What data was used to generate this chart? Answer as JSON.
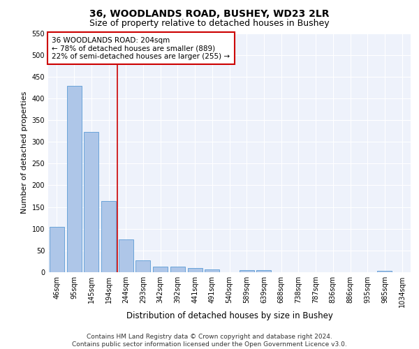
{
  "title1": "36, WOODLANDS ROAD, BUSHEY, WD23 2LR",
  "title2": "Size of property relative to detached houses in Bushey",
  "xlabel": "Distribution of detached houses by size in Bushey",
  "ylabel": "Number of detached properties",
  "categories": [
    "46sqm",
    "95sqm",
    "145sqm",
    "194sqm",
    "244sqm",
    "293sqm",
    "342sqm",
    "392sqm",
    "441sqm",
    "491sqm",
    "540sqm",
    "589sqm",
    "639sqm",
    "688sqm",
    "738sqm",
    "787sqm",
    "836sqm",
    "886sqm",
    "935sqm",
    "985sqm",
    "1034sqm"
  ],
  "values": [
    105,
    428,
    322,
    163,
    76,
    27,
    13,
    13,
    10,
    6,
    0,
    5,
    5,
    0,
    0,
    0,
    0,
    0,
    0,
    4,
    0
  ],
  "bar_color": "#aec6e8",
  "bar_edge_color": "#5b9bd5",
  "vline_x": 3.5,
  "vline_color": "#cc0000",
  "annotation_text": "36 WOODLANDS ROAD: 204sqm\n← 78% of detached houses are smaller (889)\n22% of semi-detached houses are larger (255) →",
  "annotation_box_color": "#ffffff",
  "annotation_box_edge": "#cc0000",
  "ylim": [
    0,
    550
  ],
  "yticks": [
    0,
    50,
    100,
    150,
    200,
    250,
    300,
    350,
    400,
    450,
    500,
    550
  ],
  "background_color": "#eef2fb",
  "footer_text": "Contains HM Land Registry data © Crown copyright and database right 2024.\nContains public sector information licensed under the Open Government Licence v3.0.",
  "title1_fontsize": 10,
  "title2_fontsize": 9,
  "xlabel_fontsize": 8.5,
  "ylabel_fontsize": 8,
  "tick_fontsize": 7,
  "annot_fontsize": 7.5,
  "footer_fontsize": 6.5
}
